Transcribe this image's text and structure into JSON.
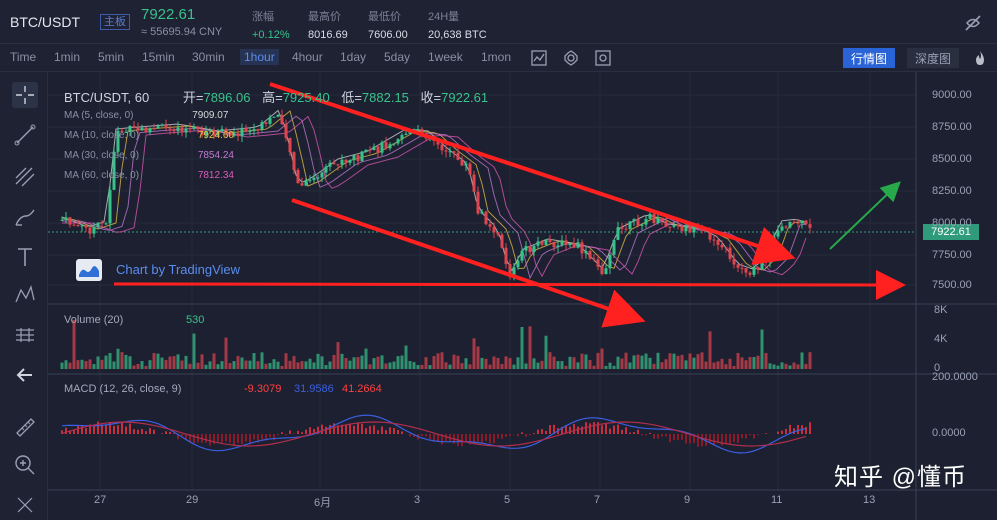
{
  "ticker": {
    "pair": "BTC/USDT",
    "board": "主板",
    "price": "7922.61",
    "cny": "≈ 55695.94 CNY",
    "stats": [
      {
        "label": "涨幅",
        "value": "+0.12%",
        "up": true
      },
      {
        "label": "最高价",
        "value": "8016.69"
      },
      {
        "label": "最低价",
        "value": "7606.00"
      },
      {
        "label": "24H量",
        "value": "20,638 BTC"
      }
    ]
  },
  "toolbar": {
    "intervals": [
      "Time",
      "1min",
      "5min",
      "15min",
      "30min",
      "1hour",
      "4hour",
      "1day",
      "5day",
      "1week",
      "1mon"
    ],
    "active_interval": "1hour",
    "btn_market": "行情图",
    "btn_depth": "深度图"
  },
  "chart": {
    "symbol_label": "BTC/USDT, 60",
    "open_label": "开=",
    "open": "7896.06",
    "high_label": "高=",
    "high": "7925.40",
    "low_label": "低=",
    "low": "7882.15",
    "close_label": "收=",
    "close": "7922.61",
    "ma": [
      {
        "label": "MA (5, close, 0)",
        "value": "7909.07",
        "color": "#d8d8d8"
      },
      {
        "label": "MA (10, close, 0)",
        "value": "7924.60",
        "color": "#e6c34a"
      },
      {
        "label": "MA (30, close, 0)",
        "value": "7854.24",
        "color": "#c47bd6"
      },
      {
        "label": "MA (60, close, 0)",
        "value": "7812.34",
        "color": "#e05ab8"
      }
    ],
    "tv_text": "Chart by TradingView",
    "price_tag": "7922.61",
    "price_axis": [
      "9000.00",
      "8750.00",
      "8500.00",
      "8250.00",
      "8000.00",
      "7750.00",
      "7500.00"
    ],
    "volume_label": "Volume (20)",
    "volume_value": "530",
    "volume_axis": [
      "8K",
      "4K",
      "0"
    ],
    "macd_label": "MACD (12, 26, close, 9)",
    "macd_values": [
      "-9.3079",
      "31.9586",
      "41.2664"
    ],
    "macd_axis": [
      "200.0000",
      "0.0000"
    ],
    "dates": [
      "27",
      "29",
      "6月",
      "3",
      "5",
      "7",
      "9",
      "11",
      "13"
    ]
  },
  "watermark": "知乎 @懂币",
  "colors": {
    "up": "#38c28b",
    "down": "#e0454f",
    "accent": "#5b8def",
    "annotation": "#ff2020",
    "annotation_up": "#27a84a"
  }
}
